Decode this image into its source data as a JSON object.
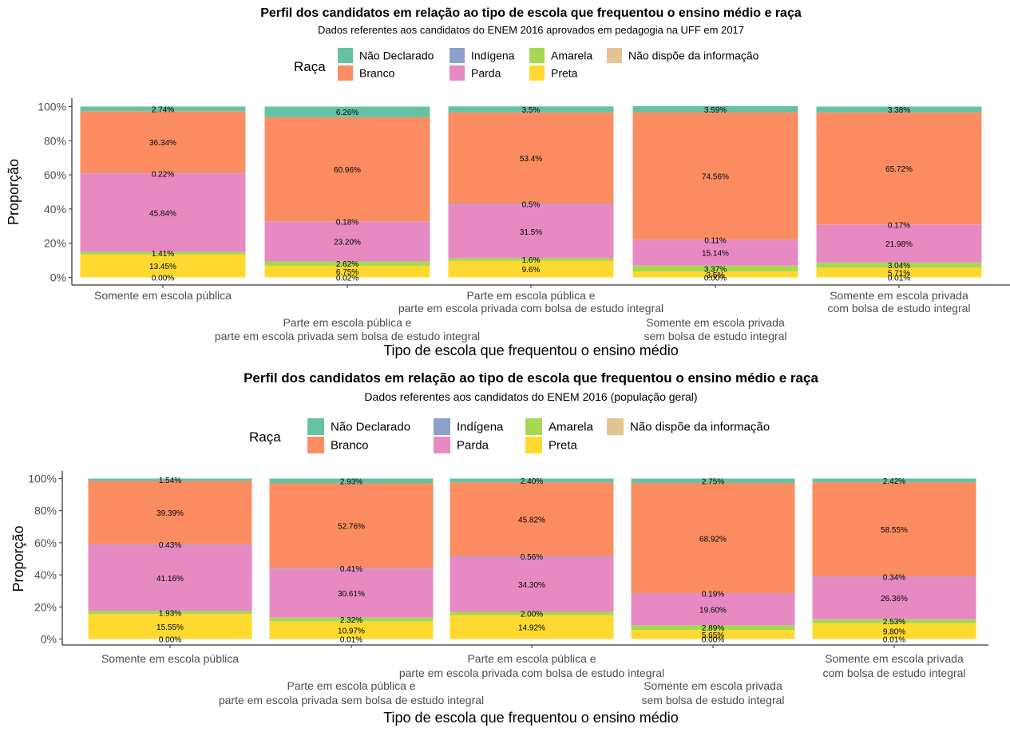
{
  "colors": {
    "nao_declarado": "#66c2a5",
    "branco": "#fc8d62",
    "indigena": "#8da0cb",
    "parda": "#e78ac3",
    "amarela": "#a6d854",
    "preta": "#ffd92f",
    "nao_dispoe": "#e5c494"
  },
  "chart_data": [
    {
      "type": "bar",
      "stacked": true,
      "title": "Perfil dos candidatos em relação ao tipo de escola que frequentou o ensino médio e raça",
      "subtitle": "Dados referentes aos candidatos do ENEM 2016 aprovados em pedagogia na UFF em 2017",
      "xlabel": "Tipo de escola que frequentou o ensino médio",
      "ylabel": "Proporção",
      "ylim": [
        0,
        100
      ],
      "yticks": [
        "0%",
        "20%",
        "40%",
        "60%",
        "80%",
        "100%"
      ],
      "legend_title": "Raça",
      "legend_position": "top",
      "legend": [
        {
          "key": "nao_declarado",
          "label": "Não Declarado"
        },
        {
          "key": "branco",
          "label": "Branco"
        },
        {
          "key": "indigena",
          "label": "Indígena"
        },
        {
          "key": "parda",
          "label": "Parda"
        },
        {
          "key": "amarela",
          "label": "Amarela"
        },
        {
          "key": "preta",
          "label": "Preta"
        },
        {
          "key": "nao_dispoe",
          "label": "Não dispõe da informação"
        }
      ],
      "categories": [
        [
          "Somente em escola pública"
        ],
        [
          "Parte em escola pública e",
          "parte em escola privada sem bolsa de estudo integral"
        ],
        [
          "Parte em escola pública e",
          "parte em escola privada com bolsa de estudo integral"
        ],
        [
          "Somente em escola privada",
          "sem bolsa de estudo integral"
        ],
        [
          "Somente em escola privada",
          "com bolsa de estudo integral"
        ]
      ],
      "series": [
        {
          "key": "nao_dispoe",
          "values": [
            0.0,
            0.02,
            0,
            0.0,
            0.01
          ],
          "labels": [
            "0.00%",
            "0.02%",
            "",
            "0.00%",
            "0.01%"
          ]
        },
        {
          "key": "preta",
          "values": [
            13.45,
            6.75,
            9.6,
            3.5,
            5.71
          ],
          "labels": [
            "13.45%",
            "6.75%",
            "9.6%",
            "3.5%",
            "5.71%"
          ]
        },
        {
          "key": "amarela",
          "values": [
            1.41,
            2.62,
            1.6,
            3.37,
            3.04
          ],
          "labels": [
            "1.41%",
            "2.62%",
            "1.6%",
            "3.37%",
            "3.04%"
          ]
        },
        {
          "key": "parda",
          "values": [
            45.84,
            23.2,
            31.5,
            15.14,
            21.98
          ],
          "labels": [
            "45.84%",
            "23.20%",
            "31.5%",
            "15.14%",
            "21.98%"
          ]
        },
        {
          "key": "indigena",
          "values": [
            0.22,
            0.18,
            0.5,
            0.11,
            0.17
          ],
          "labels": [
            "0.22%",
            "0.18%",
            "0.5%",
            "0.11%",
            "0.17%"
          ]
        },
        {
          "key": "branco",
          "values": [
            36.34,
            60.96,
            53.4,
            74.56,
            65.72
          ],
          "labels": [
            "36.34%",
            "60.96%",
            "53.4%",
            "74.56%",
            "65.72%"
          ]
        },
        {
          "key": "nao_declarado",
          "values": [
            2.74,
            6.26,
            3.5,
            3.59,
            3.38
          ],
          "labels": [
            "2.74%",
            "6.26%",
            "3.5%",
            "3.59%",
            "3.38%"
          ]
        }
      ]
    },
    {
      "type": "bar",
      "stacked": true,
      "title": "Perfil dos candidatos em relação ao tipo de escola que frequentou o ensino médio e raça",
      "subtitle": "Dados referentes aos candidatos do ENEM 2016 (população geral)",
      "xlabel": "Tipo de escola que frequentou o ensino médio",
      "ylabel": "Proporção",
      "ylim": [
        0,
        100
      ],
      "yticks": [
        "0%",
        "20%",
        "40%",
        "60%",
        "80%",
        "100%"
      ],
      "legend_title": "Raça",
      "legend_position": "top",
      "legend": [
        {
          "key": "nao_declarado",
          "label": "Não Declarado"
        },
        {
          "key": "branco",
          "label": "Branco"
        },
        {
          "key": "indigena",
          "label": "Indígena"
        },
        {
          "key": "parda",
          "label": "Parda"
        },
        {
          "key": "amarela",
          "label": "Amarela"
        },
        {
          "key": "preta",
          "label": "Preta"
        },
        {
          "key": "nao_dispoe",
          "label": "Não dispõe da informação"
        }
      ],
      "categories": [
        [
          "Somente em escola pública"
        ],
        [
          "Parte em escola pública e",
          "parte em escola privada sem bolsa de estudo integral"
        ],
        [
          "Parte em escola pública e",
          "parte em escola privada com bolsa de estudo integral"
        ],
        [
          "Somente em escola privada",
          "sem bolsa de estudo integral"
        ],
        [
          "Somente em escola privada",
          "com bolsa de estudo integral"
        ]
      ],
      "series": [
        {
          "key": "nao_dispoe",
          "values": [
            0.0,
            0.01,
            0,
            0.0,
            0.01
          ],
          "labels": [
            "0.00%",
            "0.01%",
            "",
            "0.00%",
            "0.01%"
          ]
        },
        {
          "key": "preta",
          "values": [
            15.55,
            10.97,
            14.92,
            5.65,
            9.8
          ],
          "labels": [
            "15.55%",
            "10.97%",
            "14.92%",
            "5.65%",
            "9.80%"
          ]
        },
        {
          "key": "amarela",
          "values": [
            1.93,
            2.32,
            2.0,
            2.89,
            2.53
          ],
          "labels": [
            "1.93%",
            "2.32%",
            "2.00%",
            "2.89%",
            "2.53%"
          ]
        },
        {
          "key": "parda",
          "values": [
            41.16,
            30.61,
            34.3,
            19.6,
            26.36
          ],
          "labels": [
            "41.16%",
            "30.61%",
            "34.30%",
            "19.60%",
            "26.36%"
          ]
        },
        {
          "key": "indigena",
          "values": [
            0.43,
            0.41,
            0.56,
            0.19,
            0.34
          ],
          "labels": [
            "0.43%",
            "0.41%",
            "0.56%",
            "0.19%",
            "0.34%"
          ]
        },
        {
          "key": "branco",
          "values": [
            39.39,
            52.76,
            45.82,
            68.92,
            58.55
          ],
          "labels": [
            "39.39%",
            "52.76%",
            "45.82%",
            "68.92%",
            "58.55%"
          ]
        },
        {
          "key": "nao_declarado",
          "values": [
            1.54,
            2.93,
            2.4,
            2.75,
            2.42
          ],
          "labels": [
            "1.54%",
            "2.93%",
            "2.40%",
            "2.75%",
            "2.42%"
          ]
        }
      ]
    }
  ]
}
